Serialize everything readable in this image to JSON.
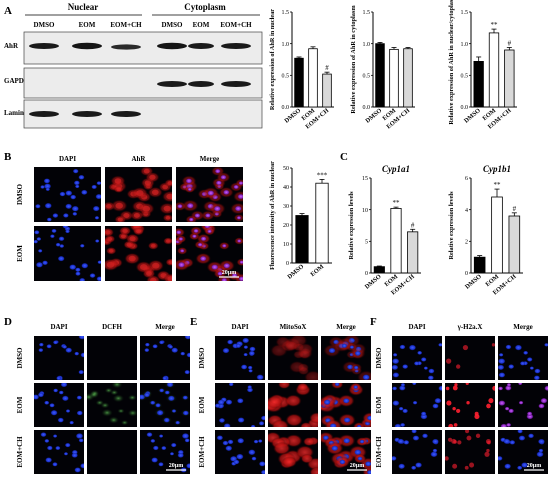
{
  "panels": {
    "A": {
      "letter": "A",
      "group_nuclear": "Nuclear",
      "group_cytoplasm": "Cytoplasm",
      "lane_labels": [
        "DMSO",
        "EOM",
        "EOM+CH",
        "DMSO",
        "EOM",
        "EOM+CH"
      ],
      "blot_rows": [
        "AhR",
        "GAPDH",
        "LaminB1"
      ]
    },
    "B": {
      "letter": "B",
      "col_labels": [
        "DAPI",
        "AhR",
        "Merge"
      ],
      "row_labels": [
        "DMSO",
        "EOM"
      ],
      "scale": "20μm"
    },
    "C": {
      "letter": "C"
    },
    "D": {
      "letter": "D",
      "col_labels": [
        "DAPI",
        "DCFH",
        "Merge"
      ],
      "row_labels": [
        "DMSO",
        "EOM",
        "EOM+CH"
      ],
      "scale": "20μm"
    },
    "E": {
      "letter": "E",
      "col_labels": [
        "DAPI",
        "MitoSoX",
        "Merge"
      ],
      "row_labels": [
        "DMSO",
        "EOM",
        "EOM+CH"
      ],
      "scale": "20μm"
    },
    "F": {
      "letter": "F",
      "col_labels": [
        "DAPI",
        "γ-H2a.X",
        "Merge"
      ],
      "row_labels": [
        "DMSO",
        "EOM",
        "EOM+CH"
      ],
      "scale": "20μm"
    }
  },
  "chart_data": [
    {
      "type": "bar",
      "panel": "A",
      "ylabel": "Relative expression of AhR in nuclear",
      "categories": [
        "DMSO",
        "EOM",
        "EOM+CH"
      ],
      "values": [
        0.77,
        0.92,
        0.52
      ],
      "errors": [
        0.02,
        0.03,
        0.03
      ],
      "fills": [
        "#000000",
        "#ffffff",
        "#d9d9d9"
      ],
      "annotations": [
        "",
        "",
        "#"
      ],
      "ylim": [
        0,
        1.5
      ],
      "yticks": [
        "0.0",
        "0.5",
        "1.0",
        "1.5"
      ]
    },
    {
      "type": "bar",
      "panel": "A",
      "ylabel": "Relative expression of AhR in cytoplasm",
      "categories": [
        "DMSO",
        "EOM",
        "EOM+CH"
      ],
      "values": [
        1.0,
        0.91,
        0.92
      ],
      "errors": [
        0.02,
        0.03,
        0.02
      ],
      "fills": [
        "#000000",
        "#ffffff",
        "#d9d9d9"
      ],
      "annotations": [
        "",
        "",
        ""
      ],
      "ylim": [
        0,
        1.5
      ],
      "yticks": [
        "0.0",
        "0.5",
        "1.0",
        "1.5"
      ]
    },
    {
      "type": "bar",
      "panel": "A",
      "ylabel": "Relative expression of AhR in nuclear/cytoplasm",
      "categories": [
        "DMSO",
        "EOM",
        "EOM+CH"
      ],
      "values": [
        0.72,
        1.17,
        0.9
      ],
      "errors": [
        0.07,
        0.06,
        0.04
      ],
      "fills": [
        "#000000",
        "#ffffff",
        "#d9d9d9"
      ],
      "annotations": [
        "",
        "**",
        "#"
      ],
      "ylim": [
        0,
        1.5
      ],
      "yticks": [
        "0.0",
        "0.5",
        "1.0",
        "1.5"
      ]
    },
    {
      "type": "bar",
      "panel": "B",
      "ylabel": "Fluorescence intensity of AhR in nuclear",
      "categories": [
        "DMSO",
        "EOM"
      ],
      "values": [
        25,
        42
      ],
      "errors": [
        1,
        2
      ],
      "fills": [
        "#000000",
        "#ffffff"
      ],
      "annotations": [
        "",
        "***"
      ],
      "ylim": [
        0,
        50
      ],
      "yticks": [
        "0",
        "10",
        "20",
        "30",
        "40",
        "50"
      ]
    },
    {
      "type": "bar",
      "panel": "C",
      "title": "Cyp1a1",
      "ylabel": "Relative expression levels",
      "categories": [
        "DMSO",
        "EOM",
        "EOM+CH"
      ],
      "values": [
        1.0,
        10.2,
        6.5
      ],
      "errors": [
        0.1,
        0.2,
        0.4
      ],
      "fills": [
        "#000000",
        "#ffffff",
        "#d9d9d9"
      ],
      "annotations": [
        "",
        "**",
        "#"
      ],
      "ylim": [
        0,
        15
      ],
      "yticks": [
        "0",
        "5",
        "10",
        "15"
      ]
    },
    {
      "type": "bar",
      "panel": "C",
      "title": "Cyp1b1",
      "ylabel": "Relative expression levels",
      "categories": [
        "DMSO",
        "EOM",
        "EOM+CH"
      ],
      "values": [
        1.0,
        4.8,
        3.6
      ],
      "errors": [
        0.1,
        0.5,
        0.2
      ],
      "fills": [
        "#000000",
        "#ffffff",
        "#d9d9d9"
      ],
      "annotations": [
        "",
        "**",
        "#"
      ],
      "ylim": [
        0,
        6
      ],
      "yticks": [
        "0",
        "2",
        "4",
        "6"
      ]
    }
  ]
}
